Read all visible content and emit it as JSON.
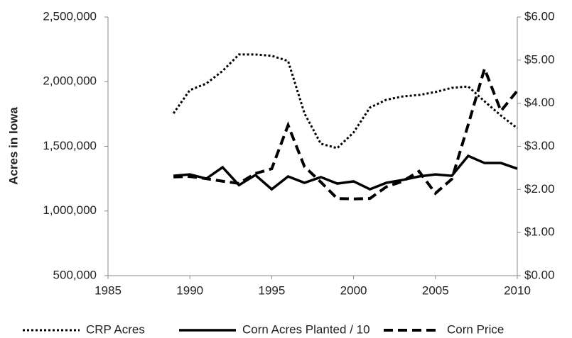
{
  "chart_data": {
    "type": "line",
    "y_label": "Acres in Iowa",
    "x": [
      1989,
      1990,
      1991,
      1992,
      1993,
      1994,
      1995,
      1996,
      1997,
      1998,
      1999,
      2000,
      2001,
      2002,
      2003,
      2004,
      2005,
      2006,
      2007,
      2008,
      2009,
      2010
    ],
    "series": [
      {
        "name": "CRP Acres",
        "color": "#000000",
        "dash": "dotted",
        "values": [
          1755000,
          1935000,
          1985000,
          2083000,
          2210000,
          2210000,
          2200000,
          2160000,
          1755000,
          1520000,
          1486000,
          1607000,
          1800000,
          1860000,
          1886000,
          1897000,
          1920000,
          1952000,
          1963000,
          1848000,
          1738000,
          1640000
        ]
      },
      {
        "name": "Corn Acres Planted / 10",
        "color": "#000000",
        "dash": "solid",
        "values": [
          1272000,
          1283000,
          1250000,
          1338000,
          1200000,
          1278000,
          1168000,
          1267000,
          1218000,
          1262000,
          1212000,
          1229000,
          1168000,
          1218000,
          1240000,
          1267000,
          1283000,
          1272000,
          1426000,
          1371000,
          1371000,
          1327000
        ]
      },
      {
        "name": "Corn Price",
        "color": "#000000",
        "dash": "dashed",
        "axis": "y2",
        "values": [
          2.29,
          2.3,
          2.25,
          2.19,
          2.14,
          2.37,
          2.48,
          3.49,
          2.53,
          2.17,
          1.79,
          1.78,
          1.79,
          2.06,
          2.19,
          2.42,
          1.91,
          2.24,
          3.5,
          4.8,
          3.82,
          4.29
        ]
      }
    ],
    "xlim": [
      1985,
      2010
    ],
    "xticks": [
      1985,
      1990,
      1995,
      2000,
      2005,
      2010
    ],
    "ylim": [
      500000,
      2500000
    ],
    "yticks": [
      {
        "value": 500000,
        "label": "500,000"
      },
      {
        "value": 1000000,
        "label": "1,000,000"
      },
      {
        "value": 1500000,
        "label": "1,500,000"
      },
      {
        "value": 2000000,
        "label": "2,000,000"
      },
      {
        "value": 2500000,
        "label": "2,500,000"
      }
    ],
    "y2lim": [
      0,
      6
    ],
    "y2ticks": [
      {
        "value": 0,
        "label": "$0.00"
      },
      {
        "value": 1,
        "label": "$1.00"
      },
      {
        "value": 2,
        "label": "$2.00"
      },
      {
        "value": 3,
        "label": "$3.00"
      },
      {
        "value": 4,
        "label": "$4.00"
      },
      {
        "value": 5,
        "label": "$5.00"
      },
      {
        "value": 6,
        "label": "$6.00"
      }
    ],
    "grid": false,
    "legend": "bottom"
  }
}
